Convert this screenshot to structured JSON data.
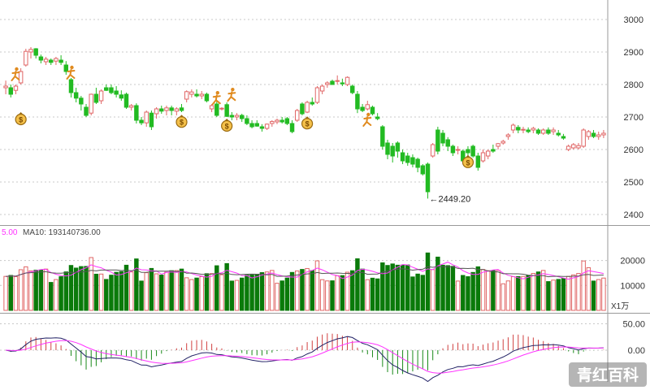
{
  "chart_data": [
    {
      "type": "candlestick",
      "price_axis": {
        "ticks": [
          "3000",
          "2900",
          "2800",
          "2700",
          "2600",
          "2500",
          "2400"
        ],
        "range": [
          2370,
          3060
        ]
      },
      "low_annotation": {
        "arrow": "←",
        "value": "2449.20"
      },
      "colors": {
        "up": "#e06666",
        "down": "#22bb22",
        "grid": "#c8c8c8"
      },
      "candles": [
        {
          "o": 2790,
          "h": 2812,
          "l": 2770,
          "c": 2795
        },
        {
          "o": 2790,
          "h": 2800,
          "l": 2760,
          "c": 2770
        },
        {
          "o": 2782,
          "h": 2800,
          "l": 2770,
          "c": 2795
        },
        {
          "o": 2805,
          "h": 2850,
          "l": 2800,
          "c": 2840
        },
        {
          "o": 2860,
          "h": 2910,
          "l": 2855,
          "c": 2902
        },
        {
          "o": 2900,
          "h": 2915,
          "l": 2880,
          "c": 2908
        },
        {
          "o": 2910,
          "h": 2912,
          "l": 2880,
          "c": 2890
        },
        {
          "o": 2885,
          "h": 2892,
          "l": 2865,
          "c": 2875
        },
        {
          "o": 2870,
          "h": 2885,
          "l": 2860,
          "c": 2878
        },
        {
          "o": 2875,
          "h": 2880,
          "l": 2860,
          "c": 2868
        },
        {
          "o": 2872,
          "h": 2885,
          "l": 2860,
          "c": 2880
        },
        {
          "o": 2875,
          "h": 2890,
          "l": 2860,
          "c": 2868
        },
        {
          "o": 2860,
          "h": 2872,
          "l": 2830,
          "c": 2840
        },
        {
          "o": 2815,
          "h": 2820,
          "l": 2760,
          "c": 2775
        },
        {
          "o": 2775,
          "h": 2790,
          "l": 2745,
          "c": 2758
        },
        {
          "o": 2758,
          "h": 2765,
          "l": 2720,
          "c": 2740
        },
        {
          "o": 2730,
          "h": 2740,
          "l": 2700,
          "c": 2705
        },
        {
          "o": 2712,
          "h": 2772,
          "l": 2705,
          "c": 2770
        },
        {
          "o": 2770,
          "h": 2790,
          "l": 2740,
          "c": 2745
        },
        {
          "o": 2750,
          "h": 2785,
          "l": 2740,
          "c": 2780
        },
        {
          "o": 2790,
          "h": 2800,
          "l": 2780,
          "c": 2782
        },
        {
          "o": 2790,
          "h": 2800,
          "l": 2770,
          "c": 2775
        },
        {
          "o": 2780,
          "h": 2795,
          "l": 2760,
          "c": 2770
        },
        {
          "o": 2768,
          "h": 2782,
          "l": 2750,
          "c": 2758
        },
        {
          "o": 2770,
          "h": 2775,
          "l": 2725,
          "c": 2730
        },
        {
          "o": 2730,
          "h": 2740,
          "l": 2720,
          "c": 2735
        },
        {
          "o": 2735,
          "h": 2742,
          "l": 2680,
          "c": 2690
        },
        {
          "o": 2690,
          "h": 2700,
          "l": 2675,
          "c": 2682
        },
        {
          "o": 2682,
          "h": 2720,
          "l": 2670,
          "c": 2715
        },
        {
          "o": 2712,
          "h": 2720,
          "l": 2660,
          "c": 2670
        },
        {
          "o": 2710,
          "h": 2730,
          "l": 2695,
          "c": 2725
        },
        {
          "o": 2725,
          "h": 2735,
          "l": 2710,
          "c": 2718
        },
        {
          "o": 2720,
          "h": 2735,
          "l": 2705,
          "c": 2728
        },
        {
          "o": 2728,
          "h": 2735,
          "l": 2705,
          "c": 2720
        },
        {
          "o": 2718,
          "h": 2730,
          "l": 2705,
          "c": 2725
        },
        {
          "o": 2728,
          "h": 2740,
          "l": 2715,
          "c": 2720
        },
        {
          "o": 2755,
          "h": 2782,
          "l": 2745,
          "c": 2778
        },
        {
          "o": 2770,
          "h": 2785,
          "l": 2760,
          "c": 2777
        },
        {
          "o": 2770,
          "h": 2785,
          "l": 2760,
          "c": 2765
        },
        {
          "o": 2765,
          "h": 2780,
          "l": 2755,
          "c": 2770
        },
        {
          "o": 2770,
          "h": 2775,
          "l": 2745,
          "c": 2750
        },
        {
          "o": 2725,
          "h": 2740,
          "l": 2715,
          "c": 2735
        },
        {
          "o": 2740,
          "h": 2748,
          "l": 2700,
          "c": 2705
        },
        {
          "o": 2725,
          "h": 2730,
          "l": 2720,
          "c": 2727
        },
        {
          "o": 2738,
          "h": 2745,
          "l": 2700,
          "c": 2702
        },
        {
          "o": 2705,
          "h": 2715,
          "l": 2690,
          "c": 2700
        },
        {
          "o": 2700,
          "h": 2712,
          "l": 2690,
          "c": 2705
        },
        {
          "o": 2705,
          "h": 2710,
          "l": 2685,
          "c": 2695
        },
        {
          "o": 2695,
          "h": 2705,
          "l": 2675,
          "c": 2680
        },
        {
          "o": 2680,
          "h": 2690,
          "l": 2665,
          "c": 2670
        },
        {
          "o": 2680,
          "h": 2690,
          "l": 2670,
          "c": 2672
        },
        {
          "o": 2670,
          "h": 2678,
          "l": 2655,
          "c": 2665
        },
        {
          "o": 2665,
          "h": 2680,
          "l": 2660,
          "c": 2678
        },
        {
          "o": 2680,
          "h": 2690,
          "l": 2670,
          "c": 2686
        },
        {
          "o": 2685,
          "h": 2695,
          "l": 2678,
          "c": 2690
        },
        {
          "o": 2690,
          "h": 2700,
          "l": 2680,
          "c": 2685
        },
        {
          "o": 2695,
          "h": 2700,
          "l": 2675,
          "c": 2680
        },
        {
          "o": 2680,
          "h": 2690,
          "l": 2650,
          "c": 2655
        },
        {
          "o": 2690,
          "h": 2725,
          "l": 2685,
          "c": 2720
        },
        {
          "o": 2740,
          "h": 2745,
          "l": 2705,
          "c": 2710
        },
        {
          "o": 2715,
          "h": 2750,
          "l": 2712,
          "c": 2745
        },
        {
          "o": 2745,
          "h": 2760,
          "l": 2735,
          "c": 2740
        },
        {
          "o": 2745,
          "h": 2795,
          "l": 2740,
          "c": 2790
        },
        {
          "o": 2780,
          "h": 2800,
          "l": 2770,
          "c": 2795
        },
        {
          "o": 2800,
          "h": 2810,
          "l": 2790,
          "c": 2805
        },
        {
          "o": 2810,
          "h": 2815,
          "l": 2800,
          "c": 2800
        },
        {
          "o": 2810,
          "h": 2828,
          "l": 2800,
          "c": 2812
        },
        {
          "o": 2805,
          "h": 2818,
          "l": 2795,
          "c": 2802
        },
        {
          "o": 2800,
          "h": 2825,
          "l": 2795,
          "c": 2822
        },
        {
          "o": 2795,
          "h": 2800,
          "l": 2770,
          "c": 2775
        },
        {
          "o": 2770,
          "h": 2780,
          "l": 2712,
          "c": 2725
        },
        {
          "o": 2730,
          "h": 2740,
          "l": 2715,
          "c": 2720
        },
        {
          "o": 2725,
          "h": 2750,
          "l": 2720,
          "c": 2738
        },
        {
          "o": 2730,
          "h": 2735,
          "l": 2705,
          "c": 2710
        },
        {
          "o": 2700,
          "h": 2712,
          "l": 2690,
          "c": 2695
        },
        {
          "o": 2670,
          "h": 2675,
          "l": 2600,
          "c": 2610
        },
        {
          "o": 2620,
          "h": 2630,
          "l": 2570,
          "c": 2585
        },
        {
          "o": 2610,
          "h": 2620,
          "l": 2560,
          "c": 2580
        },
        {
          "o": 2620,
          "h": 2625,
          "l": 2575,
          "c": 2595
        },
        {
          "o": 2590,
          "h": 2600,
          "l": 2555,
          "c": 2565
        },
        {
          "o": 2580,
          "h": 2590,
          "l": 2550,
          "c": 2560
        },
        {
          "o": 2575,
          "h": 2585,
          "l": 2545,
          "c": 2555
        },
        {
          "o": 2570,
          "h": 2575,
          "l": 2530,
          "c": 2545
        },
        {
          "o": 2550,
          "h": 2555,
          "l": 2520,
          "c": 2525
        },
        {
          "o": 2555,
          "h": 2560,
          "l": 2449,
          "c": 2470
        },
        {
          "o": 2580,
          "h": 2620,
          "l": 2575,
          "c": 2615
        },
        {
          "o": 2660,
          "h": 2670,
          "l": 2585,
          "c": 2595
        },
        {
          "o": 2650,
          "h": 2660,
          "l": 2610,
          "c": 2620
        },
        {
          "o": 2630,
          "h": 2638,
          "l": 2595,
          "c": 2610
        },
        {
          "o": 2610,
          "h": 2615,
          "l": 2580,
          "c": 2590
        },
        {
          "o": 2600,
          "h": 2610,
          "l": 2585,
          "c": 2600
        },
        {
          "o": 2595,
          "h": 2600,
          "l": 2560,
          "c": 2565
        },
        {
          "o": 2600,
          "h": 2610,
          "l": 2580,
          "c": 2590
        },
        {
          "o": 2610,
          "h": 2615,
          "l": 2575,
          "c": 2580
        },
        {
          "o": 2580,
          "h": 2590,
          "l": 2535,
          "c": 2545
        },
        {
          "o": 2565,
          "h": 2600,
          "l": 2560,
          "c": 2590
        },
        {
          "o": 2580,
          "h": 2600,
          "l": 2570,
          "c": 2595
        },
        {
          "o": 2600,
          "h": 2615,
          "l": 2590,
          "c": 2595
        },
        {
          "o": 2610,
          "h": 2620,
          "l": 2600,
          "c": 2618
        },
        {
          "o": 2620,
          "h": 2630,
          "l": 2615,
          "c": 2625
        },
        {
          "o": 2640,
          "h": 2650,
          "l": 2630,
          "c": 2645
        },
        {
          "o": 2660,
          "h": 2680,
          "l": 2650,
          "c": 2675
        },
        {
          "o": 2668,
          "h": 2675,
          "l": 2650,
          "c": 2660
        },
        {
          "o": 2660,
          "h": 2670,
          "l": 2650,
          "c": 2662
        },
        {
          "o": 2660,
          "h": 2668,
          "l": 2650,
          "c": 2655
        },
        {
          "o": 2660,
          "h": 2670,
          "l": 2650,
          "c": 2665
        },
        {
          "o": 2660,
          "h": 2665,
          "l": 2645,
          "c": 2650
        },
        {
          "o": 2650,
          "h": 2665,
          "l": 2645,
          "c": 2660
        },
        {
          "o": 2660,
          "h": 2668,
          "l": 2645,
          "c": 2650
        },
        {
          "o": 2655,
          "h": 2668,
          "l": 2645,
          "c": 2660
        },
        {
          "o": 2650,
          "h": 2660,
          "l": 2640,
          "c": 2645
        },
        {
          "o": 2640,
          "h": 2648,
          "l": 2630,
          "c": 2635
        },
        {
          "o": 2600,
          "h": 2615,
          "l": 2595,
          "c": 2610
        },
        {
          "o": 2605,
          "h": 2620,
          "l": 2600,
          "c": 2615
        },
        {
          "o": 2605,
          "h": 2620,
          "l": 2600,
          "c": 2612
        },
        {
          "o": 2610,
          "h": 2665,
          "l": 2605,
          "c": 2660
        },
        {
          "o": 2640,
          "h": 2660,
          "l": 2630,
          "c": 2655
        },
        {
          "o": 2650,
          "h": 2660,
          "l": 2635,
          "c": 2640
        },
        {
          "o": 2640,
          "h": 2655,
          "l": 2630,
          "c": 2645
        },
        {
          "o": 2645,
          "h": 2660,
          "l": 2635,
          "c": 2650
        }
      ],
      "markers": [
        {
          "icon": "runner-icon",
          "index": 2,
          "price": 2830
        },
        {
          "icon": "money-bag-icon",
          "index": 3,
          "price": 2695
        },
        {
          "icon": "runner-icon",
          "index": 13,
          "price": 2835
        },
        {
          "icon": "money-bag-icon",
          "index": 35,
          "price": 2687
        },
        {
          "icon": "runner-icon",
          "index": 42,
          "price": 2757
        },
        {
          "icon": "runner-icon",
          "index": 45,
          "price": 2767
        },
        {
          "icon": "money-bag-icon",
          "index": 44,
          "price": 2675
        },
        {
          "icon": "money-bag-icon",
          "index": 60,
          "price": 2682
        },
        {
          "icon": "runner-icon",
          "index": 72,
          "price": 2690
        },
        {
          "icon": "money-bag-icon",
          "index": 92,
          "price": 2563
        }
      ]
    },
    {
      "type": "bar",
      "legend": [
        {
          "text": "5.00",
          "color": "#ff33ff"
        },
        {
          "text": "MA10: 193140736.00",
          "color": "#444444"
        }
      ],
      "axis_ticks": [
        "20000",
        "10000"
      ],
      "unit_label": "X1万",
      "range": [
        0,
        28000
      ]
    },
    {
      "type": "bar",
      "axis_ticks": [
        "50.00",
        "0.00"
      ],
      "range": [
        -60,
        60
      ]
    }
  ],
  "watermark": "青红百科"
}
